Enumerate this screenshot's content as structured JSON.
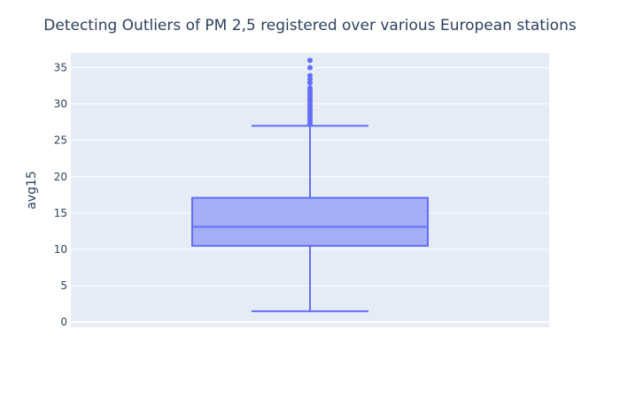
{
  "chart_data": {
    "type": "box",
    "title": "Detecting Outliers of PM 2,5 registered over various European stations",
    "xlabel": "",
    "ylabel": "avg15",
    "ylim": [
      -0.7,
      37
    ],
    "yticks": [
      0,
      5,
      10,
      15,
      20,
      25,
      30,
      35
    ],
    "box": {
      "min": 1.5,
      "q1": 10.5,
      "median": 13.1,
      "q3": 17.1,
      "upper_fence": 27.0,
      "max": 36.0
    },
    "outliers": [
      27.2,
      27.4,
      27.7,
      28.0,
      28.3,
      28.6,
      29.0,
      29.3,
      29.7,
      30.0,
      30.4,
      30.7,
      31.0,
      31.3,
      31.6,
      31.9,
      32.2,
      32.9,
      33.4,
      33.9,
      35.0,
      36.0
    ],
    "colors": {
      "plot_bg": "#e5ecf6",
      "box_fill": "#a5adf7",
      "box_line": "#636efa",
      "grid": "#ffffff",
      "text": "#2a3f5f"
    }
  }
}
